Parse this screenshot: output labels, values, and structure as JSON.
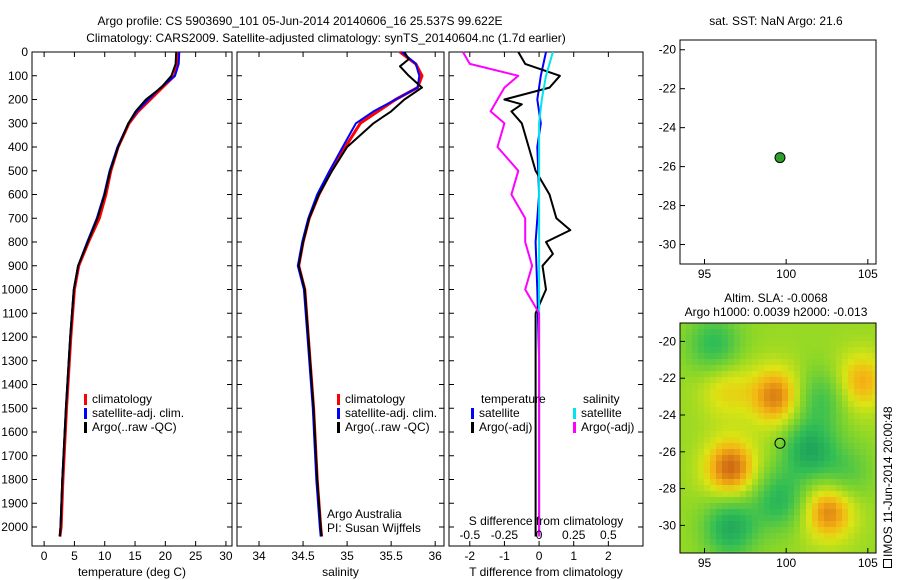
{
  "header": {
    "line1": "Argo profile: CS 5903690_101 05-Jun-2014 20140606_16 25.537S 99.622E",
    "line2": "Climatology: CARS2009. Satellite-adjusted climatology: synTS_20140604.nc (1.7d earlier)"
  },
  "colors": {
    "clim": "#ff0000",
    "sat": "#0000ff",
    "argo": "#000000",
    "sat_s": "#00e5ee",
    "argo_s": "#ff00ff",
    "point": "#2ca02c"
  },
  "legend1": [
    "climatology",
    "satellite-adj. clim.",
    "Argo(..raw -QC)"
  ],
  "legend2": [
    "climatology",
    "satellite-adj. clim.",
    "Argo(..raw -QC)"
  ],
  "legend3": {
    "head_t": "temperature",
    "head_s": "salinity",
    "sat": "satellite",
    "argo": "Argo(-adj)"
  },
  "annotation": {
    "line1": "Argo Australia",
    "line2": "PI: Susan Wijffels"
  },
  "map_top_title": "sat. SST: NaN Argo: 21.6",
  "map_bottom_title": {
    "line1": "Altim. SLA: -0.0068",
    "line2": "Argo h1000: 0.0039 h2000: -0.013"
  },
  "side_text": "IMOS 11-Jun-2014 20:00:48",
  "chart_data": [
    {
      "type": "line",
      "title": "",
      "xlabel": "temperature (deg C)",
      "ylabel": "",
      "xlim": [
        -2,
        31
      ],
      "ylim": [
        2080,
        0
      ],
      "xticks": [
        "0",
        "5",
        "10",
        "15",
        "20",
        "25",
        "30"
      ],
      "yticks": [
        "0",
        "100",
        "200",
        "300",
        "400",
        "500",
        "600",
        "700",
        "800",
        "900",
        "1000",
        "1100",
        "1200",
        "1300",
        "1400",
        "1500",
        "1600",
        "1700",
        "1800",
        "1900",
        "2000"
      ],
      "series": [
        {
          "name": "climatology",
          "depth": [
            0,
            50,
            100,
            150,
            200,
            250,
            300,
            400,
            500,
            600,
            700,
            800,
            900,
            1000,
            1200,
            1500,
            1800,
            2000,
            2040
          ],
          "values": [
            22,
            22,
            21.5,
            19.5,
            17.5,
            15.5,
            14,
            12.2,
            11,
            10.2,
            9.1,
            7.3,
            5.7,
            5,
            4.4,
            3.7,
            3.1,
            2.8,
            2.6
          ]
        },
        {
          "name": "satellite-adj. clim.",
          "depth": [
            0,
            50,
            100,
            150,
            200,
            250,
            300,
            400,
            500,
            600,
            700,
            800,
            900,
            1000,
            1200,
            1500,
            1800,
            2000,
            2040
          ],
          "values": [
            22.3,
            22.2,
            21.6,
            19.2,
            17.2,
            15.3,
            13.9,
            12.1,
            10.8,
            9.9,
            8.7,
            7.1,
            5.6,
            4.9,
            4.3,
            3.6,
            3,
            2.7,
            2.6
          ]
        },
        {
          "name": "Argo(..raw -QC)",
          "depth": [
            0,
            50,
            100,
            150,
            200,
            250,
            300,
            400,
            500,
            600,
            700,
            800,
            900,
            1000,
            1200,
            1500,
            1800,
            2000,
            2040
          ],
          "values": [
            21.8,
            21.7,
            21,
            19.3,
            16.8,
            15.1,
            13.9,
            12.2,
            10.9,
            10,
            8.8,
            7.2,
            5.6,
            4.9,
            4.3,
            3.6,
            3,
            2.7,
            2.6
          ]
        }
      ]
    },
    {
      "type": "line",
      "title": "",
      "xlabel": "salinity",
      "ylabel": "",
      "xlim": [
        33.75,
        36.1
      ],
      "ylim": [
        2080,
        0
      ],
      "xticks": [
        "34",
        "34.5",
        "35",
        "35.5",
        "36"
      ],
      "series": [
        {
          "name": "climatology",
          "depth": [
            0,
            50,
            100,
            150,
            200,
            250,
            300,
            400,
            500,
            600,
            700,
            800,
            900,
            1000,
            1200,
            1500,
            1800,
            2000,
            2040
          ],
          "values": [
            35.6,
            35.78,
            35.85,
            35.8,
            35.55,
            35.35,
            35.15,
            34.98,
            34.82,
            34.68,
            34.57,
            34.5,
            34.45,
            34.52,
            34.56,
            34.62,
            34.66,
            34.7,
            34.71
          ]
        },
        {
          "name": "satellite-adj. clim.",
          "depth": [
            0,
            50,
            100,
            150,
            200,
            250,
            300,
            400,
            500,
            600,
            700,
            800,
            900,
            1000,
            1200,
            1500,
            1800,
            2000,
            2040
          ],
          "values": [
            35.62,
            35.78,
            35.82,
            35.8,
            35.55,
            35.3,
            35.1,
            34.95,
            34.8,
            34.66,
            34.56,
            34.49,
            34.44,
            34.51,
            34.55,
            34.61,
            34.65,
            34.69,
            34.7
          ]
        },
        {
          "name": "Argo(..raw -QC)",
          "depth": [
            0,
            30,
            60,
            100,
            150,
            200,
            250,
            300,
            400,
            500,
            600,
            700,
            800,
            900,
            1000,
            1200,
            1500,
            1800,
            2000,
            2040
          ],
          "values": [
            35.65,
            35.7,
            35.6,
            35.7,
            35.85,
            35.65,
            35.5,
            35.3,
            35.0,
            34.83,
            34.68,
            34.57,
            34.5,
            34.45,
            34.52,
            34.56,
            34.62,
            34.66,
            34.7,
            34.71
          ]
        }
      ]
    },
    {
      "type": "line",
      "title": "S difference from climatology",
      "xlabel": "T difference from climatology",
      "ylabel": "",
      "xlim": [
        -2.6,
        3
      ],
      "ylim": [
        2080,
        0
      ],
      "xticks": [
        "-2",
        "-1",
        "0",
        "1",
        "2"
      ],
      "top_ticks": [
        "-0.5",
        "-0.25",
        "0",
        "0.25",
        "0.5"
      ],
      "series": [
        {
          "name": "temperature satellite",
          "depth": [
            0,
            100,
            200,
            300,
            400,
            600,
            800,
            1000,
            1300,
            1600,
            2000,
            2040
          ],
          "values": [
            0.2,
            0.05,
            -0.05,
            0.05,
            -0.05,
            0,
            -0.1,
            -0.05,
            0,
            0,
            0,
            0
          ]
        },
        {
          "name": "temperature Argo(-adj)",
          "depth": [
            0,
            50,
            100,
            150,
            200,
            220,
            250,
            300,
            400,
            500,
            600,
            700,
            750,
            800,
            850,
            900,
            1000,
            1100,
            1300,
            1500,
            1700,
            2000,
            2040
          ],
          "values": [
            -0.6,
            -0.4,
            0.6,
            0.3,
            -1,
            -0.5,
            -0.8,
            -0.5,
            -0.3,
            -0.1,
            0.3,
            0.5,
            0.9,
            0.2,
            0.4,
            0.1,
            0.2,
            -0.1,
            -0.1,
            -0.1,
            -0.1,
            -0.1,
            -0.1
          ]
        },
        {
          "name": "salinity satellite",
          "depth": [
            0,
            100,
            200,
            300,
            400,
            600,
            800,
            1000,
            1300,
            1600,
            2000,
            2040
          ],
          "values": [
            0.1,
            0.05,
            0.02,
            0,
            0,
            0,
            0,
            0,
            0,
            0,
            0,
            0
          ]
        },
        {
          "name": "salinity Argo(-adj)",
          "depth": [
            0,
            50,
            100,
            150,
            200,
            250,
            300,
            400,
            500,
            600,
            700,
            800,
            900,
            1000,
            1100,
            1300,
            1500,
            1700,
            2000,
            2040
          ],
          "values": [
            -0.55,
            -0.5,
            -0.15,
            -0.25,
            -0.3,
            -0.35,
            -0.25,
            -0.3,
            -0.15,
            -0.2,
            -0.1,
            -0.1,
            -0.05,
            -0.1,
            0,
            0,
            0,
            0,
            0,
            0
          ]
        }
      ]
    },
    {
      "type": "scatter",
      "title": "sat. SST: NaN Argo: 21.6",
      "xlim": [
        93.5,
        105.5
      ],
      "ylim": [
        -31,
        -19.5
      ],
      "xticks": [
        "95",
        "100",
        "105"
      ],
      "yticks": [
        "-20",
        "-22",
        "-24",
        "-26",
        "-28",
        "-30"
      ],
      "points": [
        {
          "x": 99.622,
          "y": -25.537
        }
      ]
    },
    {
      "type": "heatmap",
      "title": "Altim. SLA: -0.0068",
      "xlim": [
        93.5,
        105.5
      ],
      "ylim": [
        -31.5,
        -19
      ],
      "xticks": [
        "95",
        "100",
        "105"
      ],
      "yticks": [
        "-20",
        "-22",
        "-24",
        "-26",
        "-28",
        "-30"
      ],
      "points": [
        {
          "x": 99.622,
          "y": -25.537
        }
      ],
      "blobs": [
        {
          "x": 96.6,
          "y": -26.9,
          "v": 0.9
        },
        {
          "x": 99.4,
          "y": -23.0,
          "v": 0.8
        },
        {
          "x": 102.6,
          "y": -29.2,
          "v": 0.8
        },
        {
          "x": 104.6,
          "y": -22.2,
          "v": 0.6
        },
        {
          "x": 96.3,
          "y": -22.6,
          "v": 0.4
        },
        {
          "x": 101.4,
          "y": -25.9,
          "v": -0.8
        },
        {
          "x": 96.6,
          "y": -30.1,
          "v": -0.8
        },
        {
          "x": 99.6,
          "y": -28.6,
          "v": -0.65
        },
        {
          "x": 95.6,
          "y": -20.2,
          "v": -0.6
        },
        {
          "x": 102.1,
          "y": -23.1,
          "v": -0.5
        },
        {
          "x": 103.6,
          "y": -27.2,
          "v": -0.4
        }
      ]
    }
  ]
}
